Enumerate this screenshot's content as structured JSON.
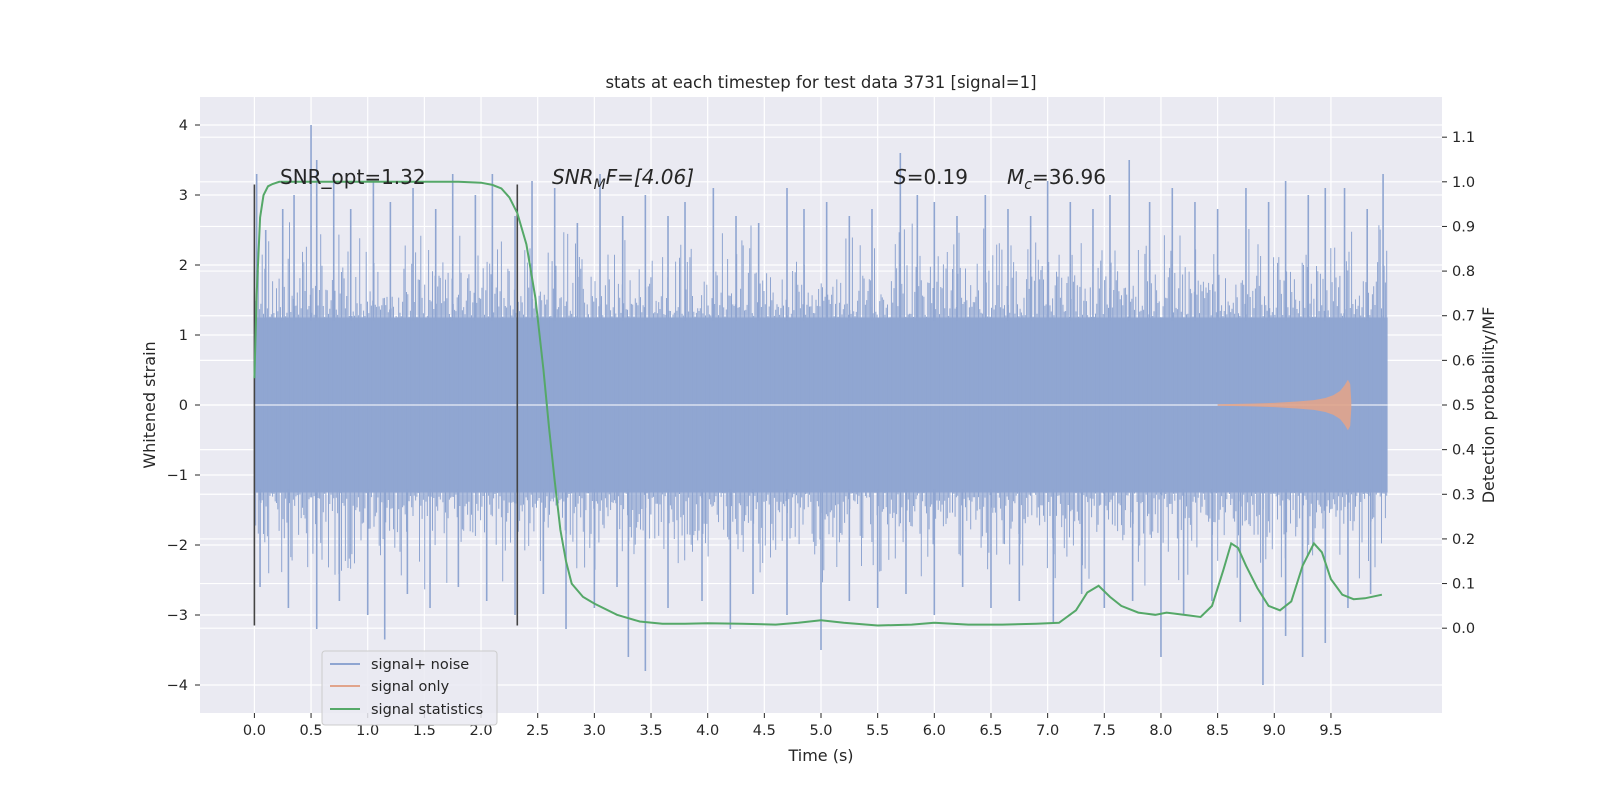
{
  "chart_data": {
    "type": "line",
    "title": "stats at each timestep for test data 3731 [signal=1]",
    "xlabel": "Time (s)",
    "ylabel": "Whitened strain",
    "y2label": "Detection probability/MF",
    "xlim": [
      -0.48,
      10.48
    ],
    "ylim": [
      -4.4,
      4.4
    ],
    "y2lim": [
      -0.19,
      1.19
    ],
    "x_ticks": [
      "0.0",
      "0.5",
      "1.0",
      "1.5",
      "2.0",
      "2.5",
      "3.0",
      "3.5",
      "4.0",
      "4.5",
      "5.0",
      "5.5",
      "6.0",
      "6.5",
      "7.0",
      "7.5",
      "8.0",
      "8.5",
      "9.0",
      "9.5"
    ],
    "y_ticks": [
      "4",
      "3",
      "2",
      "1",
      "0",
      "−1",
      "−2",
      "−3",
      "−4"
    ],
    "y2_ticks": [
      "1.1",
      "1.0",
      "0.9",
      "0.8",
      "0.7",
      "0.6",
      "0.5",
      "0.4",
      "0.3",
      "0.2",
      "0.1",
      "0.0"
    ],
    "grid": true,
    "legend_position": "lower-left",
    "annotations": {
      "snr_opt": "SNR_opt=1.32",
      "snr_mf_symbol": "SNR",
      "snr_mf_sub": "M",
      "snr_mf_rest": "F=[4.06]",
      "s_symbol": "S",
      "s_rest": "=0.19",
      "mc_symbol": "M",
      "mc_sub": "c",
      "mc_rest": "=36.96"
    },
    "markers": [
      {
        "x": 0.0,
        "y_range": [
          -3.15,
          3.15
        ]
      },
      {
        "x": 2.32,
        "y_range": [
          -3.15,
          3.15
        ]
      }
    ],
    "series": [
      {
        "name": "signal+ noise",
        "color": "#8fa5d1",
        "x_range": [
          0.0,
          10.0
        ],
        "band": [
          -1.25,
          1.25
        ],
        "peaks_up": [
          [
            0.02,
            3.3
          ],
          [
            0.1,
            2.5
          ],
          [
            0.25,
            2.8
          ],
          [
            0.35,
            3.0
          ],
          [
            0.5,
            4.0
          ],
          [
            0.55,
            3.5
          ],
          [
            0.7,
            3.3
          ],
          [
            0.85,
            2.8
          ],
          [
            1.05,
            3.2
          ],
          [
            1.2,
            2.9
          ],
          [
            1.4,
            3.1
          ],
          [
            1.6,
            2.8
          ],
          [
            1.75,
            3.3
          ],
          [
            1.95,
            3.0
          ],
          [
            2.1,
            3.3
          ],
          [
            2.3,
            2.7
          ],
          [
            2.45,
            3.2
          ],
          [
            2.65,
            3.1
          ],
          [
            2.85,
            2.6
          ],
          [
            3.05,
            3.3
          ],
          [
            3.25,
            2.7
          ],
          [
            3.45,
            3.0
          ],
          [
            3.65,
            2.7
          ],
          [
            3.8,
            2.9
          ],
          [
            4.05,
            3.1
          ],
          [
            4.25,
            2.7
          ],
          [
            4.45,
            2.6
          ],
          [
            4.7,
            3.1
          ],
          [
            4.85,
            2.8
          ],
          [
            5.05,
            2.9
          ],
          [
            5.25,
            2.7
          ],
          [
            5.45,
            2.8
          ],
          [
            5.7,
            3.6
          ],
          [
            5.85,
            3.0
          ],
          [
            6.0,
            2.9
          ],
          [
            6.2,
            2.7
          ],
          [
            6.45,
            3.0
          ],
          [
            6.65,
            2.8
          ],
          [
            6.85,
            2.7
          ],
          [
            7.0,
            3.2
          ],
          [
            7.2,
            2.9
          ],
          [
            7.4,
            2.8
          ],
          [
            7.55,
            3.0
          ],
          [
            7.72,
            3.5
          ],
          [
            7.9,
            2.9
          ],
          [
            8.1,
            3.1
          ],
          [
            8.3,
            2.9
          ],
          [
            8.5,
            2.8
          ],
          [
            8.75,
            3.1
          ],
          [
            8.95,
            2.9
          ],
          [
            9.1,
            3.2
          ],
          [
            9.3,
            3.0
          ],
          [
            9.45,
            3.1
          ],
          [
            9.62,
            3.1
          ],
          [
            9.82,
            2.8
          ],
          [
            9.96,
            3.3
          ]
        ],
        "peaks_down": [
          [
            0.05,
            -2.6
          ],
          [
            0.3,
            -2.9
          ],
          [
            0.55,
            -3.2
          ],
          [
            0.75,
            -2.8
          ],
          [
            1.0,
            -3.0
          ],
          [
            1.15,
            -3.35
          ],
          [
            1.35,
            -2.7
          ],
          [
            1.55,
            -2.9
          ],
          [
            1.8,
            -2.6
          ],
          [
            2.05,
            -2.8
          ],
          [
            2.3,
            -3.0
          ],
          [
            2.55,
            -2.7
          ],
          [
            2.75,
            -3.2
          ],
          [
            3.0,
            -2.9
          ],
          [
            3.2,
            -2.6
          ],
          [
            3.3,
            -3.6
          ],
          [
            3.45,
            -3.8
          ],
          [
            3.65,
            -2.9
          ],
          [
            3.95,
            -2.8
          ],
          [
            4.2,
            -3.2
          ],
          [
            4.4,
            -2.7
          ],
          [
            4.7,
            -3.0
          ],
          [
            5.0,
            -3.5
          ],
          [
            5.25,
            -2.8
          ],
          [
            5.5,
            -2.9
          ],
          [
            5.75,
            -2.7
          ],
          [
            6.0,
            -3.0
          ],
          [
            6.25,
            -2.6
          ],
          [
            6.5,
            -2.9
          ],
          [
            6.75,
            -2.8
          ],
          [
            7.05,
            -3.1
          ],
          [
            7.3,
            -2.7
          ],
          [
            7.5,
            -2.9
          ],
          [
            7.75,
            -2.8
          ],
          [
            8.0,
            -3.6
          ],
          [
            8.2,
            -3.0
          ],
          [
            8.45,
            -2.8
          ],
          [
            8.7,
            -3.1
          ],
          [
            8.9,
            -4.0
          ],
          [
            9.1,
            -3.3
          ],
          [
            9.25,
            -3.6
          ],
          [
            9.45,
            -3.4
          ],
          [
            9.65,
            -2.9
          ],
          [
            9.85,
            -2.7
          ]
        ]
      },
      {
        "name": "signal only",
        "color": "#e1a48b",
        "x": [
          8.5,
          8.8,
          9.0,
          9.2,
          9.35,
          9.45,
          9.52,
          9.58,
          9.62,
          9.65,
          9.67,
          9.68
        ],
        "amplitude": [
          0.01,
          0.02,
          0.03,
          0.05,
          0.07,
          0.1,
          0.14,
          0.2,
          0.28,
          0.36,
          0.3,
          0.05
        ]
      },
      {
        "name": "signal statistics",
        "axis": "right",
        "color": "#55a868",
        "x": [
          0.0,
          0.02,
          0.05,
          0.08,
          0.12,
          0.16,
          0.22,
          0.35,
          0.6,
          1.0,
          1.4,
          1.8,
          2.0,
          2.1,
          2.18,
          2.25,
          2.32,
          2.4,
          2.48,
          2.55,
          2.6,
          2.65,
          2.7,
          2.75,
          2.8,
          2.9,
          3.0,
          3.2,
          3.4,
          3.6,
          3.8,
          4.0,
          4.3,
          4.6,
          4.8,
          5.0,
          5.2,
          5.5,
          5.8,
          6.0,
          6.3,
          6.6,
          6.9,
          7.1,
          7.25,
          7.35,
          7.45,
          7.55,
          7.65,
          7.8,
          7.95,
          8.05,
          8.2,
          8.35,
          8.45,
          8.55,
          8.62,
          8.68,
          8.75,
          8.85,
          8.95,
          9.05,
          9.15,
          9.25,
          9.35,
          9.42,
          9.5,
          9.6,
          9.7,
          9.8,
          9.95
        ],
        "values": [
          0.56,
          0.75,
          0.92,
          0.97,
          0.99,
          0.995,
          1.0,
          1.0,
          1.0,
          1.0,
          1.0,
          1.0,
          0.998,
          0.993,
          0.985,
          0.965,
          0.93,
          0.86,
          0.74,
          0.58,
          0.45,
          0.33,
          0.22,
          0.15,
          0.1,
          0.07,
          0.055,
          0.03,
          0.015,
          0.01,
          0.01,
          0.011,
          0.01,
          0.008,
          0.012,
          0.018,
          0.012,
          0.006,
          0.008,
          0.012,
          0.008,
          0.008,
          0.01,
          0.012,
          0.04,
          0.08,
          0.095,
          0.07,
          0.05,
          0.035,
          0.03,
          0.035,
          0.03,
          0.025,
          0.05,
          0.13,
          0.19,
          0.18,
          0.14,
          0.09,
          0.05,
          0.04,
          0.06,
          0.14,
          0.19,
          0.17,
          0.11,
          0.075,
          0.065,
          0.067,
          0.075
        ]
      }
    ]
  }
}
